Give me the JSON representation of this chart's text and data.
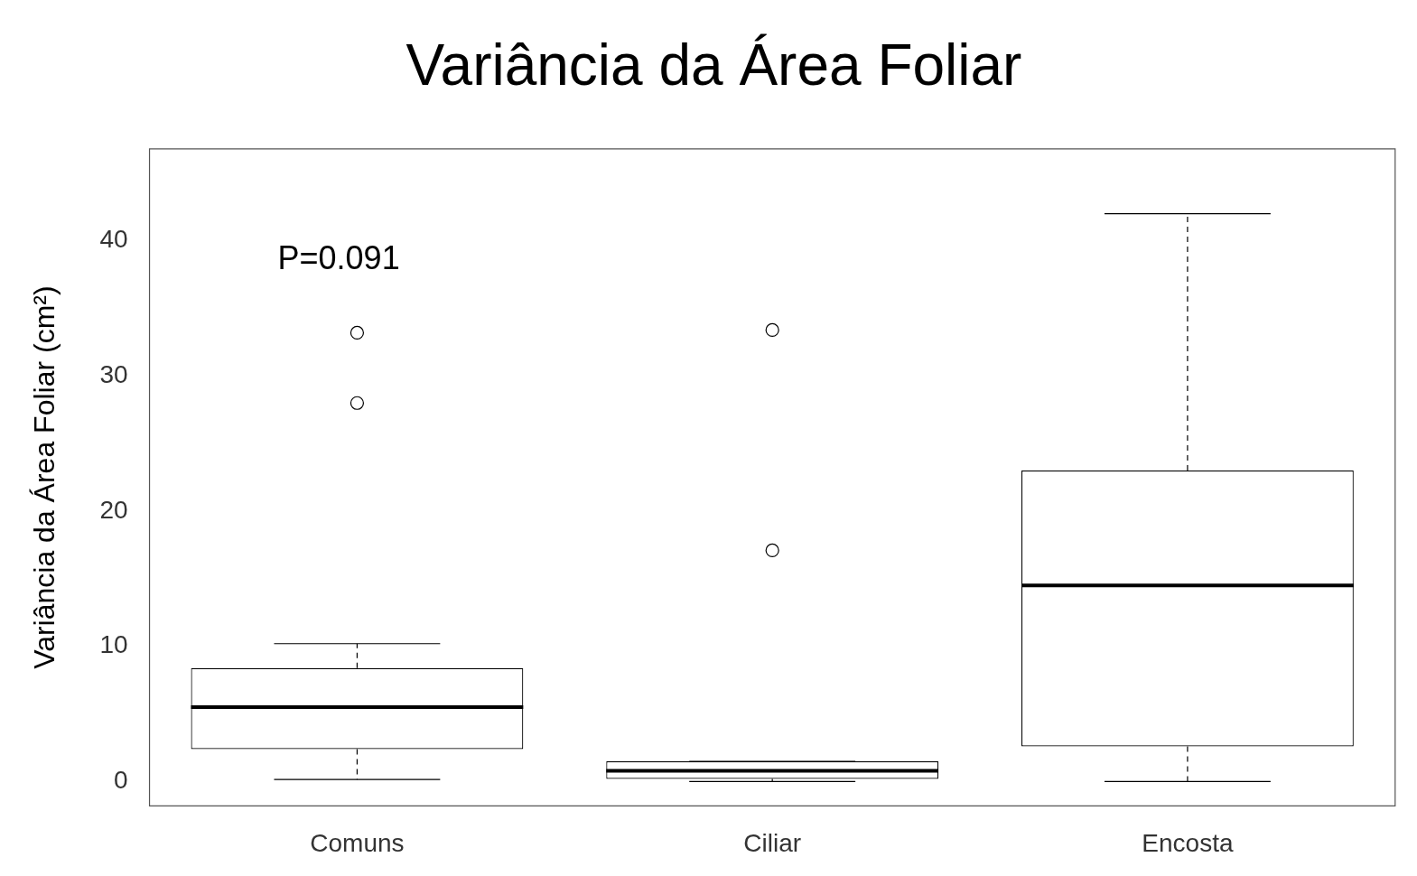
{
  "chart_data": {
    "type": "box",
    "title": "Variância da Área Foliar",
    "ylabel": "Variância da Área Foliar (cm²)",
    "categories": [
      "Comuns",
      "Ciliar",
      "Encosta"
    ],
    "boxes": [
      {
        "low": 0.15,
        "q1": 2.4,
        "median": 5.5,
        "q3": 8.4,
        "high": 10.2,
        "outliers": [
          33.2,
          28.0
        ]
      },
      {
        "low": 0,
        "q1": 0.2,
        "median": 0.8,
        "q3": 1.5,
        "high": 1.5,
        "outliers": [
          33.4,
          17.1
        ]
      },
      {
        "low": 0,
        "q1": 2.6,
        "median": 14.5,
        "q3": 23.0,
        "high": 42.0
      }
    ],
    "ylim": [
      -1.8,
      46.8
    ],
    "yticks": [
      0,
      10,
      20,
      30,
      40
    ],
    "grid": false,
    "legend": false,
    "marker": "circle",
    "annotations": [
      "P=0.091"
    ]
  }
}
